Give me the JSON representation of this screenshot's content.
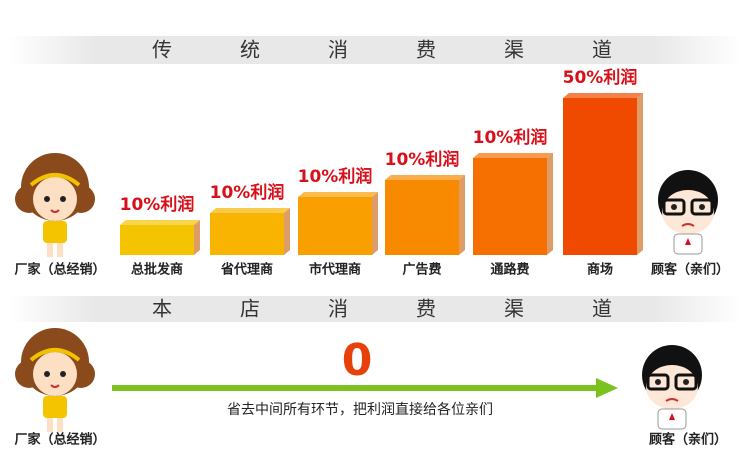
{
  "top_section": {
    "title": "传统消费渠道",
    "producer": "厂家（总经销）",
    "consumer": "顾客（亲们）",
    "channels": [
      {
        "name": "总批发商",
        "profit": "10%利润"
      },
      {
        "name": "省代理商",
        "profit": "10%利润"
      },
      {
        "name": "市代理商",
        "profit": "10%利润"
      },
      {
        "name": "广告费",
        "profit": "10%利润"
      },
      {
        "name": "通路费",
        "profit": "10%利润"
      },
      {
        "name": "商场",
        "profit": "50%利润"
      }
    ]
  },
  "bottom_section": {
    "title": "本店消费渠道",
    "markup": "0",
    "note": "省去中间所有环节，把利润直接给各位亲们",
    "producer": "厂家（总经销）",
    "consumer": "顾客（亲们）"
  }
}
